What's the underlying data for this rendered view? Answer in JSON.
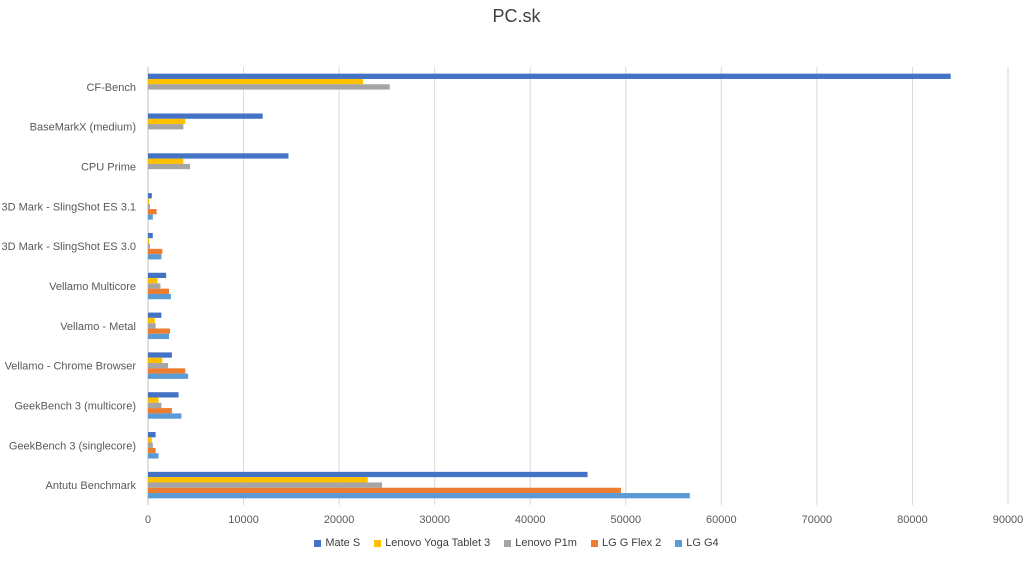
{
  "chart_data": {
    "type": "bar",
    "orientation": "horizontal",
    "title": "PC.sk",
    "xlabel": "",
    "ylabel": "",
    "xlim": [
      0,
      90000
    ],
    "x_ticks": [
      "0",
      "10000",
      "20000",
      "30000",
      "40000",
      "50000",
      "60000",
      "70000",
      "80000",
      "90000"
    ],
    "grid": "vertical",
    "legend_position": "bottom",
    "categories": [
      "CF-Bench",
      "BaseMarkX (medium)",
      "CPU Prime",
      "3D Mark - SlingShot ES 3.1",
      "3D Mark - SlingShot ES 3.0",
      "Vellamo Multicore",
      "Vellamo - Metal",
      "Vellamo - Chrome Browser",
      "GeekBench 3 (multicore)",
      "GeekBench 3 (singlecore)",
      "Antutu Benchmark"
    ],
    "series": [
      {
        "name": "Mate S",
        "color": "#4472C4",
        "values": [
          84000,
          12000,
          14700,
          400,
          500,
          1900,
          1400,
          2500,
          3200,
          800,
          46000
        ]
      },
      {
        "name": "Lenovo Yoga Tablet 3",
        "color": "#FFC000",
        "values": [
          22500,
          3900,
          3700,
          100,
          100,
          1000,
          700,
          1500,
          1100,
          400,
          23000
        ]
      },
      {
        "name": "Lenovo P1m",
        "color": "#A5A5A5",
        "values": [
          25300,
          3700,
          4400,
          200,
          200,
          1300,
          800,
          2100,
          1400,
          500,
          24500
        ]
      },
      {
        "name": "LG G Flex 2",
        "color": "#ED7D31",
        "values": [
          null,
          null,
          null,
          900,
          1500,
          2200,
          2300,
          3900,
          2500,
          800,
          49500
        ]
      },
      {
        "name": "LG G4",
        "color": "#5B9BD5",
        "values": [
          null,
          null,
          null,
          500,
          1400,
          2400,
          2200,
          4200,
          3500,
          1100,
          56700
        ]
      }
    ]
  }
}
